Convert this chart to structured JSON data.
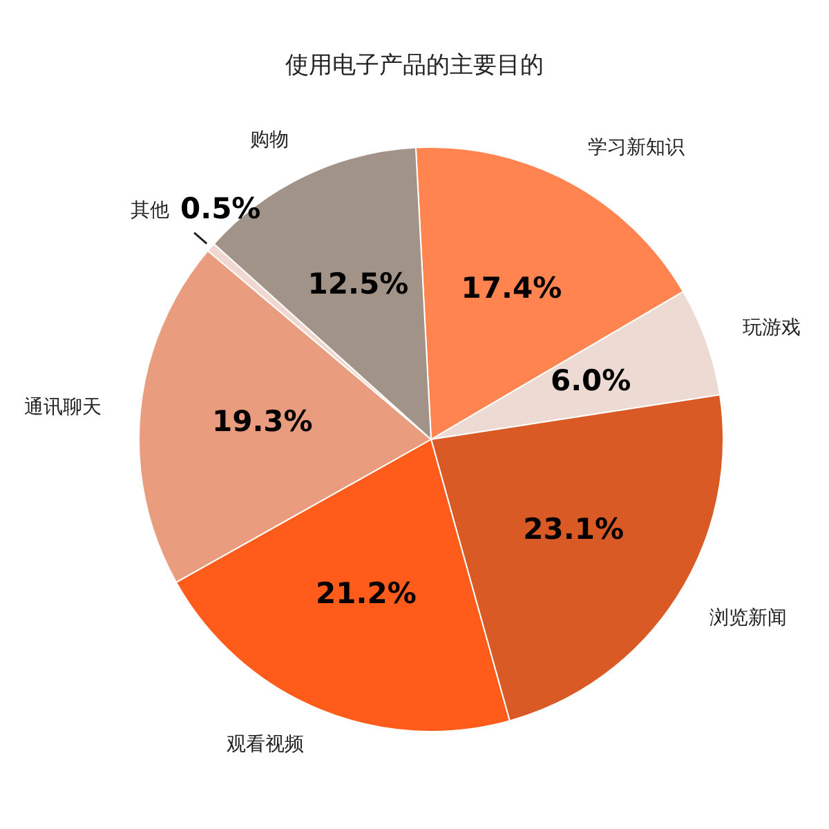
{
  "chart_data": {
    "type": "pie",
    "title": "使用电子产品的主要目的",
    "categories": [
      "学习新知识",
      "玩游戏",
      "浏览新闻",
      "观看视频",
      "通讯聊天",
      "其他",
      "购物"
    ],
    "values": [
      17.4,
      6.0,
      23.1,
      21.2,
      19.3,
      0.5,
      12.5
    ],
    "colors": [
      "#ff8450",
      "#eddad2",
      "#d95a24",
      "#ff5b1a",
      "#e99c7e",
      "#f0d8d0",
      "#a29389"
    ],
    "value_labels": [
      "17.4%",
      "6.0%",
      "23.1%",
      "21.2%",
      "19.3%",
      "0.5%",
      "12.5%"
    ],
    "legend": false
  }
}
